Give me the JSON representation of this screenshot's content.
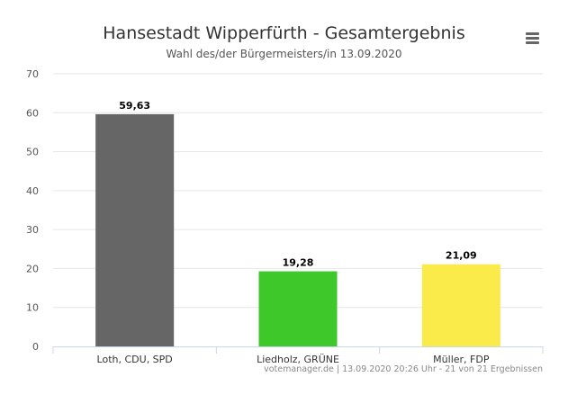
{
  "chart_data": {
    "type": "bar",
    "title": "Hansestadt Wipperfürth - Gesamtergebnis",
    "subtitle": "Wahl des/der Bürgermeisters/in 13.09.2020",
    "categories": [
      "Loth, CDU, SPD",
      "Liedholz, GRÜNE",
      "Müller, FDP"
    ],
    "values": [
      59.63,
      19.28,
      21.09
    ],
    "value_labels": [
      "59,63",
      "19,28",
      "21,09"
    ],
    "colors": [
      "#666666",
      "#3ec82a",
      "#faea4a"
    ],
    "ylim": [
      0,
      70
    ],
    "yticks": [
      "0",
      "10",
      "20",
      "30",
      "40",
      "50",
      "60",
      "70"
    ],
    "grid": true,
    "legend": "none"
  },
  "credits": "votemanager.de | 13.09.2020 20:26 Uhr - 21 von 21 Ergebnissen",
  "menu_icon": "hamburger-menu-icon"
}
